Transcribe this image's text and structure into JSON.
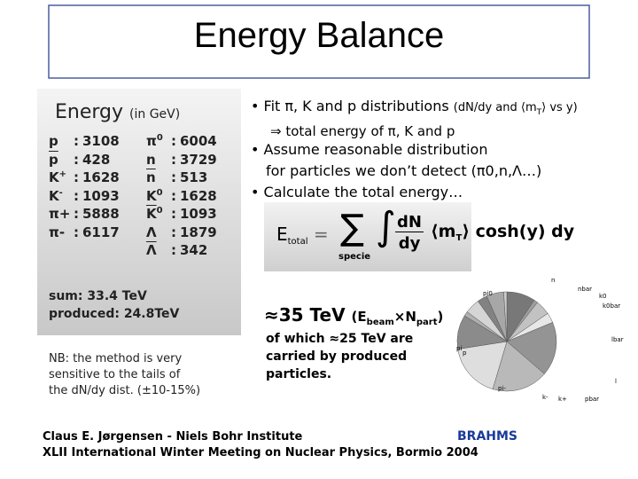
{
  "title": "Energy Balance",
  "left": {
    "heading": "Energy",
    "unit": "(in GeV)",
    "col1": [
      {
        "label": "p",
        "sep": ":",
        "value": 3108
      },
      {
        "label": "p",
        "overline": true,
        "sep": ":",
        "value": 428
      },
      {
        "label": "K",
        "sup": "+",
        "sep": ":",
        "value": 1628
      },
      {
        "label": "K",
        "sup": "-",
        "sep": ":",
        "value": 1093
      },
      {
        "label": "π+",
        "sep": ":",
        "value": 5888
      },
      {
        "label": "π-",
        "sep": ":",
        "value": 6117
      }
    ],
    "col2": [
      {
        "label": "π",
        "sup": "0",
        "sep": ":",
        "value": 6004
      },
      {
        "label": "n",
        "sep": ":",
        "value": 3729
      },
      {
        "label": "n",
        "overline": true,
        "sep": ":",
        "value": 513
      },
      {
        "label": "K",
        "sup": "0",
        "sep": ":",
        "value": 1628
      },
      {
        "label": "K",
        "sup": "0",
        "overline": true,
        "sep": ":",
        "value": 1093
      },
      {
        "label": "Λ",
        "sep": ":",
        "value": 1879
      },
      {
        "label": "Λ",
        "overline": true,
        "sep": ":",
        "value": 342
      }
    ],
    "sum": "sum: 33.4 TeV",
    "produced": "produced: 24.8TeV"
  },
  "note": [
    "NB: the method is very",
    "sensitive to the tails of",
    "the dN/dy dist. (±10-15%)"
  ],
  "bullets": [
    [
      {
        "text": "• Fit π, K and p distributions ",
        "style": ""
      },
      {
        "text": "(dN/dy and ⟨m",
        "style": "small"
      },
      {
        "text": "T",
        "style": "smallsub"
      },
      {
        "text": "⟩ vs y)",
        "style": "small"
      }
    ],
    [
      {
        "text": "⇒ total energy of π, K and p",
        "style": "indent"
      }
    ],
    [
      {
        "text": "• Assume reasonable distribution",
        "style": ""
      }
    ],
    [
      {
        "text": "for particles we don’t detect (π",
        "style": "cont"
      },
      {
        "text": "0",
        "style": "sup"
      },
      {
        "text": ",n,Λ…)",
        "style": ""
      }
    ],
    [
      {
        "text": "• Calculate the total energy…",
        "style": ""
      }
    ]
  ],
  "formula": {
    "lhs": "E",
    "lhs_sub": "total",
    "eq": "=",
    "sum": "∑",
    "under": "specie",
    "int": "∫",
    "num": "dN",
    "den": "dy",
    "m": "⟨m",
    "m_sub": "T",
    "m_end": "⟩",
    "rest": "cosh(y) dy"
  },
  "energy": [
    {
      "text": "≈35 TeV ",
      "style": "big"
    },
    {
      "text": "(E",
      "style": ""
    },
    {
      "text": "beam",
      "style": "sub"
    },
    {
      "text": "×N",
      "style": ""
    },
    {
      "text": "part",
      "style": "sub"
    },
    {
      "text": ")",
      "style": ""
    }
  ],
  "which": [
    "of which ≈25 TeV are",
    "carried by produced",
    "particles."
  ],
  "pie_labels": [
    "pi0",
    "n",
    "nbar",
    "k0",
    "k0bar",
    "lbar",
    "l",
    "pbar",
    "k-",
    "k+",
    "pi-",
    "pi",
    "p"
  ],
  "footer": [
    "Claus E. Jørgensen - Niels Bohr Institute",
    "XLII International Winter Meeting on Nuclear Physics, Bormio 2004"
  ],
  "logo": "BRAHMS"
}
